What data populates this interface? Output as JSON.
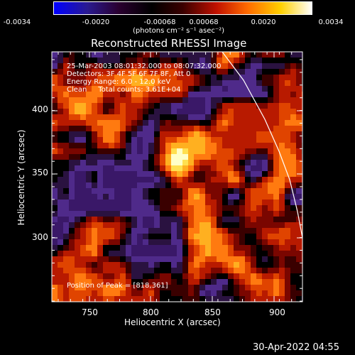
{
  "colorbar": {
    "tick_labels": [
      "-0.0034",
      "-0.0020",
      "-0.00068",
      "0.00068",
      "0.0020",
      "0.0034"
    ],
    "units": "(photons cm⁻² s⁻¹ asec⁻²)",
    "colors": [
      "#0000ff",
      "#2a1a90",
      "#2a0030",
      "#000000",
      "#3a0000",
      "#c01000",
      "#ff6a00",
      "#ffd000",
      "#ffffff"
    ]
  },
  "plot": {
    "title": "Reconstructed RHESSI Image",
    "info_lines": [
      "25-Mar-2003 08:01:32.000 to 08:07:32.000",
      "Detectors: 3F 4F 5F 6F 7F 8F, Att 0",
      "Energy Range: 6.0 - 12.0 keV",
      "Clean     Total counts: 3.61E+04"
    ],
    "peak_text": "Position of Peak = [818,361]",
    "xlabel": "Heliocentric X (arcsec)",
    "ylabel": "Heliocentric Y (arcsec)",
    "xticks": [
      "750",
      "800",
      "850",
      "900"
    ],
    "yticks": [
      "400",
      "350",
      "300"
    ],
    "footer_timestamp": "30-Apr-2022 04:55",
    "limb_color": "#ffffff"
  }
}
